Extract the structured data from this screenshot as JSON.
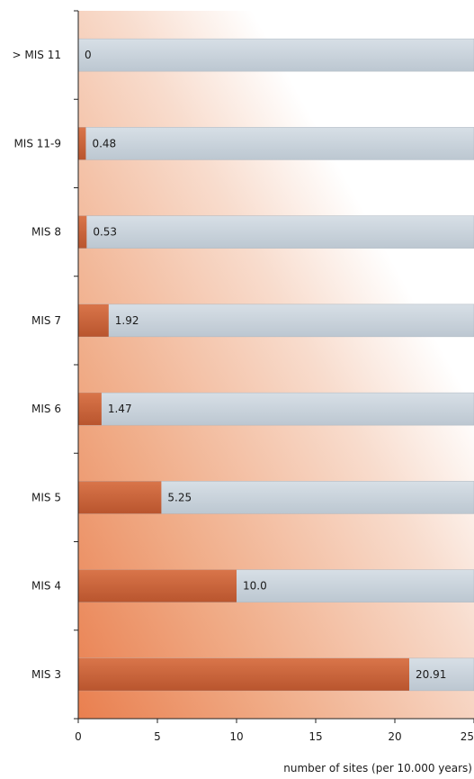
{
  "chart_data": {
    "type": "bar",
    "orientation": "horizontal",
    "categories": [
      "> MIS 11",
      "MIS 11-9",
      "MIS 8",
      "MIS 7",
      "MIS 6",
      "MIS 5",
      "MIS 4",
      "MIS 3"
    ],
    "values": [
      0,
      0.48,
      0.53,
      1.92,
      1.47,
      5.25,
      10.0,
      20.91
    ],
    "value_labels": [
      "0",
      "0.48",
      "0.53",
      "1.92",
      "1.47",
      "5.25",
      "10.0",
      "20.91"
    ],
    "xlabel": "number of sites (per 10.000 years)",
    "ylabel": "",
    "xlim": [
      0,
      25
    ],
    "xticks": [
      0,
      5,
      10,
      15,
      20,
      25
    ],
    "xtick_labels": [
      "0",
      "5",
      "10",
      "15",
      "20",
      "25"
    ],
    "grid": false,
    "colors": {
      "bar": "#c8643a",
      "track": "#c9d3dc",
      "gradient_light": "#ffffff",
      "gradient_dark": "#ea8a5a",
      "axis": "#222222"
    }
  }
}
